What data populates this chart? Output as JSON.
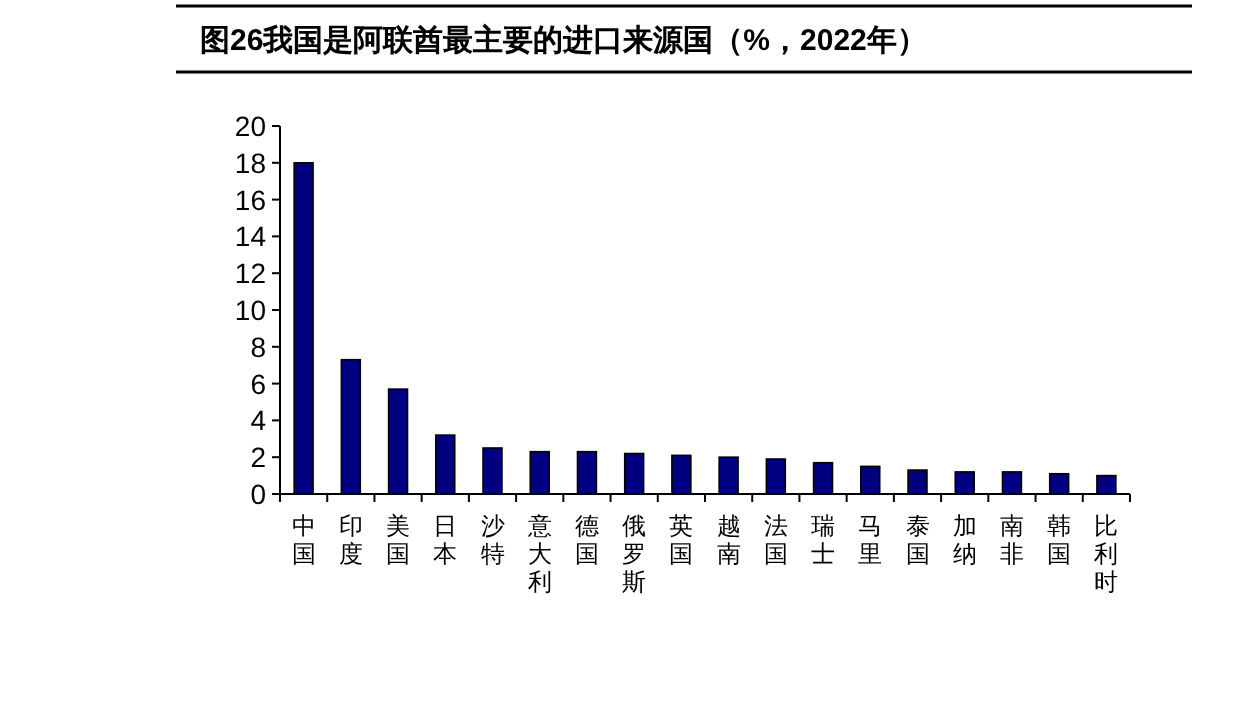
{
  "chart_data": {
    "type": "bar",
    "title": "图26我国是阿联酋最主要的进口来源国（%，2022年）",
    "categories": [
      "中国",
      "印度",
      "美国",
      "日本",
      "沙特",
      "意大利",
      "德国",
      "俄罗斯",
      "英国",
      "越南",
      "法国",
      "瑞士",
      "马里",
      "泰国",
      "加纳",
      "南非",
      "韩国",
      "比利时"
    ],
    "values": [
      18,
      7.3,
      5.7,
      3.2,
      2.5,
      2.3,
      2.3,
      2.2,
      2.1,
      2.0,
      1.9,
      1.7,
      1.5,
      1.3,
      1.2,
      1.2,
      1.1,
      1.0
    ],
    "color": "#000080",
    "ylim": [
      0,
      20
    ],
    "yticks": [
      0,
      2,
      4,
      6,
      8,
      10,
      12,
      14,
      16,
      18,
      20
    ]
  }
}
